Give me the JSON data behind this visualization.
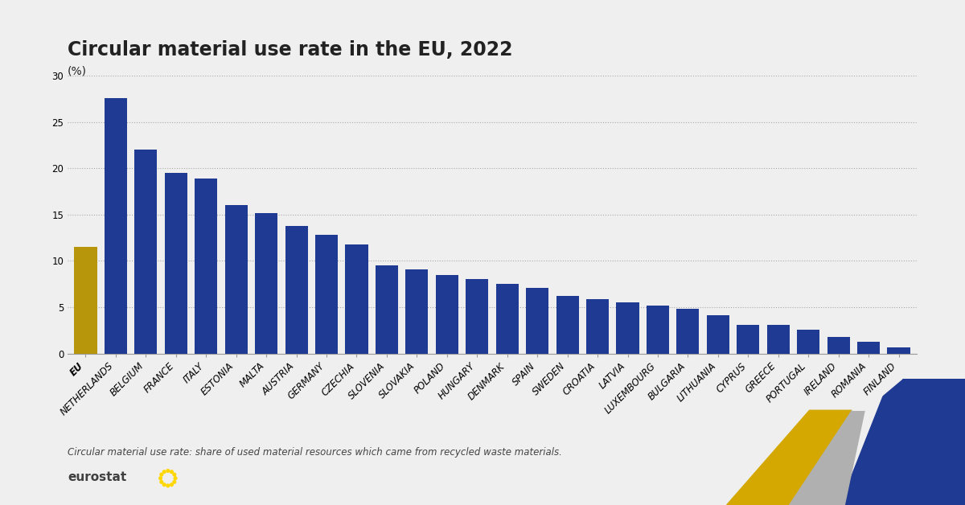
{
  "title": "Circular material use rate in the EU, 2022",
  "ylabel": "(%)",
  "categories": [
    "EU",
    "NETHERLANDS",
    "BELGIUM",
    "FRANCE",
    "ITALY",
    "ESTONIA",
    "MALTA",
    "AUSTRIA",
    "GERMANY",
    "CZECHIA",
    "SLOVENIA",
    "SLOVAKIA",
    "POLAND",
    "HUNGARY",
    "DENMARK",
    "SPAIN",
    "SWEDEN",
    "CROATIA",
    "LATVIA",
    "LUXEMBOURG",
    "BULGARIA",
    "LITHUANIA",
    "CYPRUS",
    "GREECE",
    "PORTUGAL",
    "IRELAND",
    "ROMANIA",
    "FINLAND"
  ],
  "values": [
    11.5,
    27.6,
    22.0,
    19.5,
    18.9,
    16.0,
    15.2,
    13.8,
    12.8,
    11.8,
    9.5,
    9.1,
    8.5,
    8.0,
    7.5,
    7.1,
    6.2,
    5.9,
    5.5,
    5.2,
    4.8,
    4.1,
    3.1,
    3.1,
    2.6,
    1.8,
    1.3,
    0.7
  ],
  "bar_colors_main": "#1f3a93",
  "bar_color_eu": "#b8960c",
  "ylim": [
    0,
    30
  ],
  "yticks": [
    0,
    5,
    10,
    15,
    20,
    25,
    30
  ],
  "background_color": "#efefef",
  "plot_bg_color": "#efefef",
  "footnote": "Circular material use rate: share of used material resources which came from recycled waste materials.",
  "title_fontsize": 17,
  "ylabel_fontsize": 10,
  "tick_fontsize": 8.5,
  "footnote_fontsize": 8.5
}
